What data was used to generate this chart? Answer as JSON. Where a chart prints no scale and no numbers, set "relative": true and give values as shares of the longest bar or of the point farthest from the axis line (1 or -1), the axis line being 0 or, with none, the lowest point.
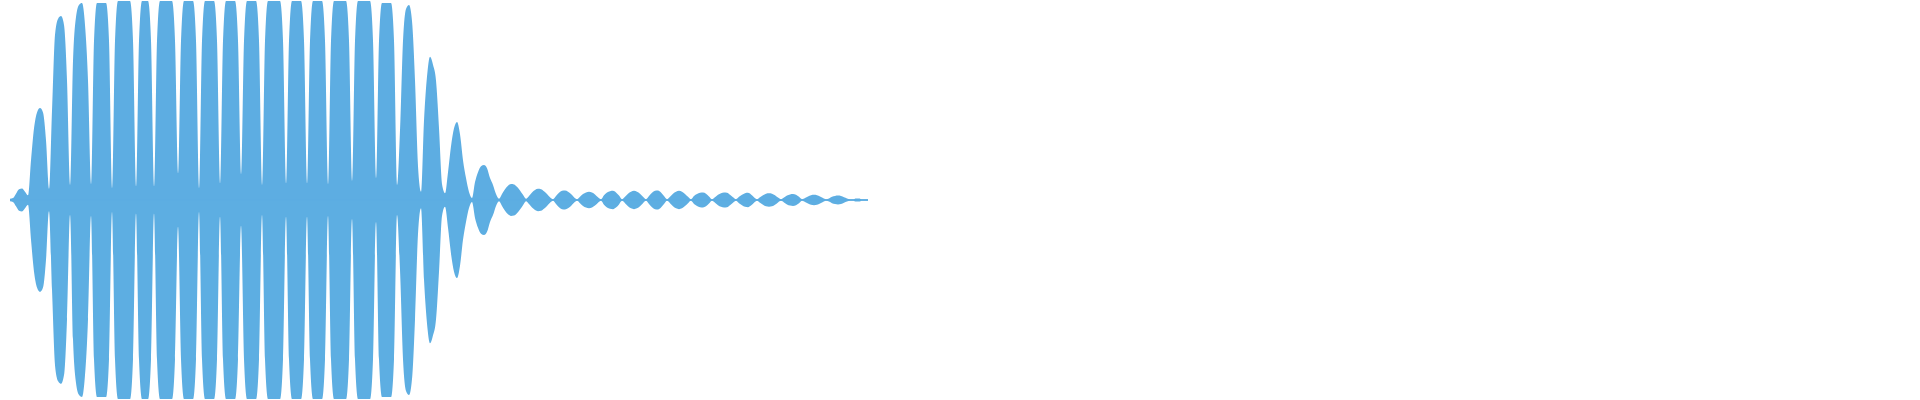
{
  "chart_data": {
    "type": "area",
    "relative": true,
    "categories": [
      null,
      null,
      null,
      null,
      null,
      null,
      null,
      null,
      null,
      null,
      null,
      null,
      null,
      null,
      null,
      null,
      null,
      null,
      null,
      null,
      null,
      null,
      null,
      null,
      null,
      null,
      null,
      null,
      null,
      null,
      null,
      null,
      null,
      null,
      null,
      null,
      null,
      null,
      null,
      null,
      null,
      null,
      null,
      null,
      null,
      null,
      null,
      null,
      null,
      null,
      null,
      null,
      null,
      null,
      null,
      null,
      null,
      null,
      null,
      null,
      null,
      null,
      null,
      null,
      null,
      null,
      null,
      null,
      null,
      null,
      null,
      null,
      null,
      null,
      null,
      null,
      null,
      null,
      null,
      null,
      null,
      null,
      null,
      null,
      null,
      null,
      null,
      null,
      null,
      null,
      null,
      null,
      null,
      null,
      null,
      null,
      null,
      null,
      null,
      null,
      null,
      null,
      null,
      null,
      null,
      null,
      null,
      null,
      null,
      null,
      null,
      null,
      null,
      null,
      null,
      null,
      null,
      null,
      null,
      null,
      null,
      null,
      null,
      null,
      null,
      null,
      null,
      null,
      null,
      null,
      null,
      null,
      null,
      null,
      null,
      null,
      null,
      null,
      null,
      null,
      null,
      null,
      null,
      null,
      null,
      null,
      null,
      null,
      null,
      null,
      null,
      null,
      null,
      null,
      null,
      null,
      null,
      null,
      null,
      null,
      null,
      null,
      null,
      null,
      null,
      null,
      null,
      null,
      null,
      null,
      null,
      null,
      null,
      null,
      null,
      null,
      null,
      null,
      null,
      null,
      null,
      null,
      null,
      null,
      null,
      null,
      null,
      null,
      null,
      null,
      null,
      null,
      null,
      null,
      null,
      null,
      null,
      null,
      null,
      null,
      null,
      null,
      null,
      null,
      null,
      null,
      null,
      null,
      null,
      null,
      null,
      null,
      null,
      null,
      null,
      null,
      null,
      null,
      null,
      null,
      null,
      null,
      null,
      null,
      null,
      null,
      null,
      null,
      null,
      null,
      null,
      null,
      null,
      null,
      null,
      null,
      null,
      null,
      null,
      null,
      null,
      null,
      null,
      null,
      null,
      null,
      null,
      null,
      null,
      null,
      null,
      null,
      null,
      null,
      null,
      null,
      null,
      null,
      null,
      null,
      null,
      null,
      null,
      null,
      null,
      null,
      null,
      null,
      null,
      null,
      null,
      null,
      null,
      null,
      null,
      null,
      null,
      null,
      null,
      null,
      null,
      null,
      null,
      null,
      null,
      null,
      null
    ],
    "series": [
      {
        "color": "#5dade2",
        "values": [
          0.006,
          0.01,
          0.032,
          0.054,
          0.058,
          0.042,
          0.024,
          0.2,
          0.36,
          0.44,
          0.462,
          0.44,
          0.3,
          0.056,
          0.45,
          0.83,
          0.91,
          0.924,
          0.88,
          0.6,
          0.076,
          0.7,
          0.92,
          0.98,
          0.99,
          0.88,
          0.6,
          0.08,
          0.8,
          0.99,
          0.99,
          0.99,
          0.99,
          0.8,
          0.06,
          0.8,
          1,
          1,
          1,
          1,
          1,
          0.8,
          0.068,
          0.8,
          1,
          1,
          1,
          0.8,
          0.068,
          0.8,
          1,
          1,
          1,
          1,
          1,
          0.8,
          0.134,
          0.8,
          1,
          1,
          1,
          1,
          0.8,
          0.06,
          0.8,
          1,
          1,
          1,
          1,
          0.8,
          0.084,
          0.8,
          1,
          1,
          1,
          1,
          0.8,
          0.13,
          0.8,
          1,
          1,
          1,
          1,
          0.8,
          0.076,
          0.8,
          1,
          1,
          1,
          1,
          1,
          0.8,
          0.084,
          0.8,
          1,
          1,
          1,
          1,
          0.8,
          0.084,
          0.8,
          1,
          1,
          1,
          1,
          0.8,
          0.08,
          0.8,
          1,
          1,
          1,
          1,
          1,
          0.8,
          0.096,
          0.8,
          1,
          1,
          1,
          1,
          1,
          0.8,
          0.11,
          0.8,
          0.99,
          0.99,
          0.99,
          0.99,
          0.8,
          0.076,
          0.35,
          0.8,
          0.96,
          0.98,
          0.9,
          0.6,
          0.17,
          0.042,
          0.4,
          0.62,
          0.72,
          0.68,
          0.6,
          0.36,
          0.08,
          0.034,
          0.14,
          0.27,
          0.36,
          0.392,
          0.33,
          0.2,
          0.11,
          0.04,
          0.01,
          0.09,
          0.14,
          0.17,
          0.176,
          0.16,
          0.11,
          0.076,
          0.03,
          0.006,
          0.03,
          0.054,
          0.072,
          0.08,
          0.078,
          0.066,
          0.048,
          0.026,
          0.006,
          0.02,
          0.038,
          0.05,
          0.056,
          0.054,
          0.044,
          0.03,
          0.014,
          0.004,
          0.02,
          0.036,
          0.046,
          0.048,
          0.042,
          0.03,
          0.014,
          0.004,
          0.016,
          0.03,
          0.038,
          0.042,
          0.038,
          0.028,
          0.014,
          0.004,
          0.024,
          0.038,
          0.044,
          0.046,
          0.038,
          0.022,
          0.004,
          0.016,
          0.032,
          0.042,
          0.046,
          0.042,
          0.032,
          0.016,
          0.004,
          0.02,
          0.036,
          0.046,
          0.048,
          0.038,
          0.02,
          0.004,
          0.016,
          0.032,
          0.042,
          0.046,
          0.042,
          0.03,
          0.016,
          0.004,
          0.02,
          0.03,
          0.036,
          0.038,
          0.032,
          0.018,
          0.004,
          0.014,
          0.026,
          0.034,
          0.038,
          0.036,
          0.026,
          0.014,
          0.004,
          0.016,
          0.026,
          0.034,
          0.036,
          0.028,
          0.014,
          0.004,
          0.014,
          0.024,
          0.032,
          0.034,
          0.032,
          0.024,
          0.012,
          0.004,
          0.012,
          0.022,
          0.028,
          0.03,
          0.026,
          0.016,
          0.004,
          0.01,
          0.018,
          0.024,
          0.026,
          0.024,
          0.018,
          0.01,
          0.004,
          0.008,
          0.016,
          0.02,
          0.022,
          0.02,
          0.014,
          0.008,
          0.004,
          0.004,
          0.008,
          0.008,
          0.004,
          0.004,
          0.004
        ]
      },
      {
        "color": "#5daee2",
        "values": [
          -0.006,
          -0.01,
          -0.032,
          -0.054,
          -0.058,
          -0.042,
          -0.024,
          -0.2,
          -0.36,
          -0.44,
          -0.462,
          -0.44,
          -0.3,
          -0.056,
          -0.45,
          -0.83,
          -0.91,
          -0.924,
          -0.88,
          -0.6,
          -0.076,
          -0.7,
          -0.92,
          -0.98,
          -0.99,
          -0.88,
          -0.6,
          -0.08,
          -0.8,
          -0.99,
          -0.99,
          -0.99,
          -0.99,
          -0.8,
          -0.06,
          -0.8,
          -1,
          -1,
          -1,
          -1,
          -1,
          -0.8,
          -0.068,
          -0.8,
          -1,
          -1,
          -1,
          -0.8,
          -0.068,
          -0.8,
          -1,
          -1,
          -1,
          -1,
          -1,
          -0.8,
          -0.134,
          -0.8,
          -1,
          -1,
          -1,
          -1,
          -0.8,
          -0.06,
          -0.8,
          -1,
          -1,
          -1,
          -1,
          -0.8,
          -0.084,
          -0.8,
          -1,
          -1,
          -1,
          -1,
          -0.8,
          -0.13,
          -0.8,
          -1,
          -1,
          -1,
          -1,
          -0.8,
          -0.076,
          -0.8,
          -1,
          -1,
          -1,
          -1,
          -1,
          -0.8,
          -0.084,
          -0.8,
          -1,
          -1,
          -1,
          -1,
          -0.8,
          -0.084,
          -0.8,
          -1,
          -1,
          -1,
          -1,
          -0.8,
          -0.08,
          -0.8,
          -1,
          -1,
          -1,
          -1,
          -1,
          -0.8,
          -0.096,
          -0.8,
          -1,
          -1,
          -1,
          -1,
          -1,
          -0.8,
          -0.11,
          -0.8,
          -0.99,
          -0.99,
          -0.99,
          -0.99,
          -0.8,
          -0.076,
          -0.35,
          -0.8,
          -0.96,
          -0.98,
          -0.9,
          -0.6,
          -0.17,
          -0.042,
          -0.4,
          -0.62,
          -0.72,
          -0.68,
          -0.6,
          -0.36,
          -0.08,
          -0.034,
          -0.14,
          -0.27,
          -0.36,
          -0.392,
          -0.33,
          -0.2,
          -0.11,
          -0.04,
          -0.01,
          -0.09,
          -0.14,
          -0.17,
          -0.176,
          -0.16,
          -0.11,
          -0.076,
          -0.03,
          -0.006,
          -0.03,
          -0.054,
          -0.072,
          -0.08,
          -0.078,
          -0.066,
          -0.048,
          -0.026,
          -0.006,
          -0.02,
          -0.038,
          -0.05,
          -0.056,
          -0.054,
          -0.044,
          -0.03,
          -0.014,
          -0.004,
          -0.02,
          -0.036,
          -0.046,
          -0.048,
          -0.042,
          -0.03,
          -0.014,
          -0.004,
          -0.016,
          -0.03,
          -0.038,
          -0.042,
          -0.038,
          -0.028,
          -0.014,
          -0.004,
          -0.024,
          -0.038,
          -0.044,
          -0.046,
          -0.038,
          -0.022,
          -0.004,
          -0.016,
          -0.032,
          -0.042,
          -0.046,
          -0.042,
          -0.032,
          -0.016,
          -0.004,
          -0.02,
          -0.036,
          -0.046,
          -0.048,
          -0.038,
          -0.02,
          -0.004,
          -0.016,
          -0.032,
          -0.042,
          -0.046,
          -0.042,
          -0.03,
          -0.016,
          -0.004,
          -0.02,
          -0.03,
          -0.036,
          -0.038,
          -0.032,
          -0.018,
          -0.004,
          -0.014,
          -0.026,
          -0.034,
          -0.038,
          -0.036,
          -0.026,
          -0.014,
          -0.004,
          -0.016,
          -0.026,
          -0.034,
          -0.036,
          -0.028,
          -0.014,
          -0.004,
          -0.014,
          -0.024,
          -0.032,
          -0.034,
          -0.032,
          -0.024,
          -0.012,
          -0.004,
          -0.012,
          -0.022,
          -0.028,
          -0.03,
          -0.026,
          -0.016,
          -0.004,
          -0.01,
          -0.018,
          -0.024,
          -0.026,
          -0.024,
          -0.018,
          -0.01,
          -0.004,
          -0.008,
          -0.016,
          -0.02,
          -0.022,
          -0.02,
          -0.014,
          -0.008,
          -0.004,
          -0.004,
          -0.008,
          -0.008,
          -0.004,
          -0.004,
          -0.004
        ]
      }
    ]
  }
}
